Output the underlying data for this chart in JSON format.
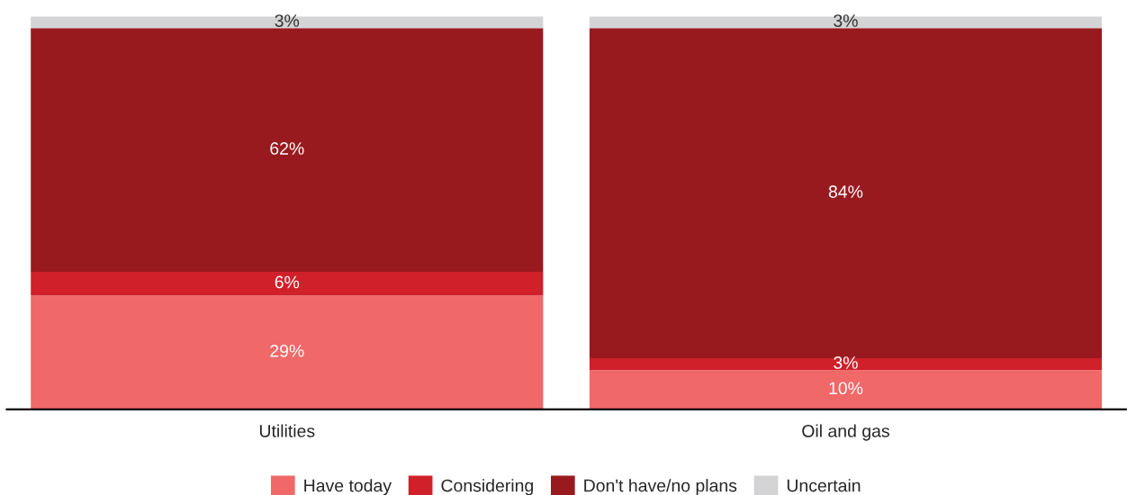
{
  "chart_data": {
    "type": "bar",
    "stacked": true,
    "legend": "bottom",
    "grid": false,
    "categories": [
      "Utilities",
      "Oil and gas"
    ],
    "series": [
      {
        "name": "Have today",
        "color": "#f06868",
        "values": [
          29,
          10
        ],
        "value_labels": [
          "29%",
          "10%"
        ]
      },
      {
        "name": "Considering",
        "color": "#d0202a",
        "values": [
          6,
          3
        ],
        "value_labels": [
          "6%",
          "3%"
        ]
      },
      {
        "name": "Don't have/no plans",
        "color": "#981a1f",
        "values": [
          62,
          84
        ],
        "value_labels": [
          "62%",
          "84%"
        ]
      },
      {
        "name": "Uncertain",
        "color": "#d4d4d6",
        "values": [
          3,
          3
        ],
        "value_labels": [
          "3%",
          "3%"
        ]
      }
    ]
  }
}
